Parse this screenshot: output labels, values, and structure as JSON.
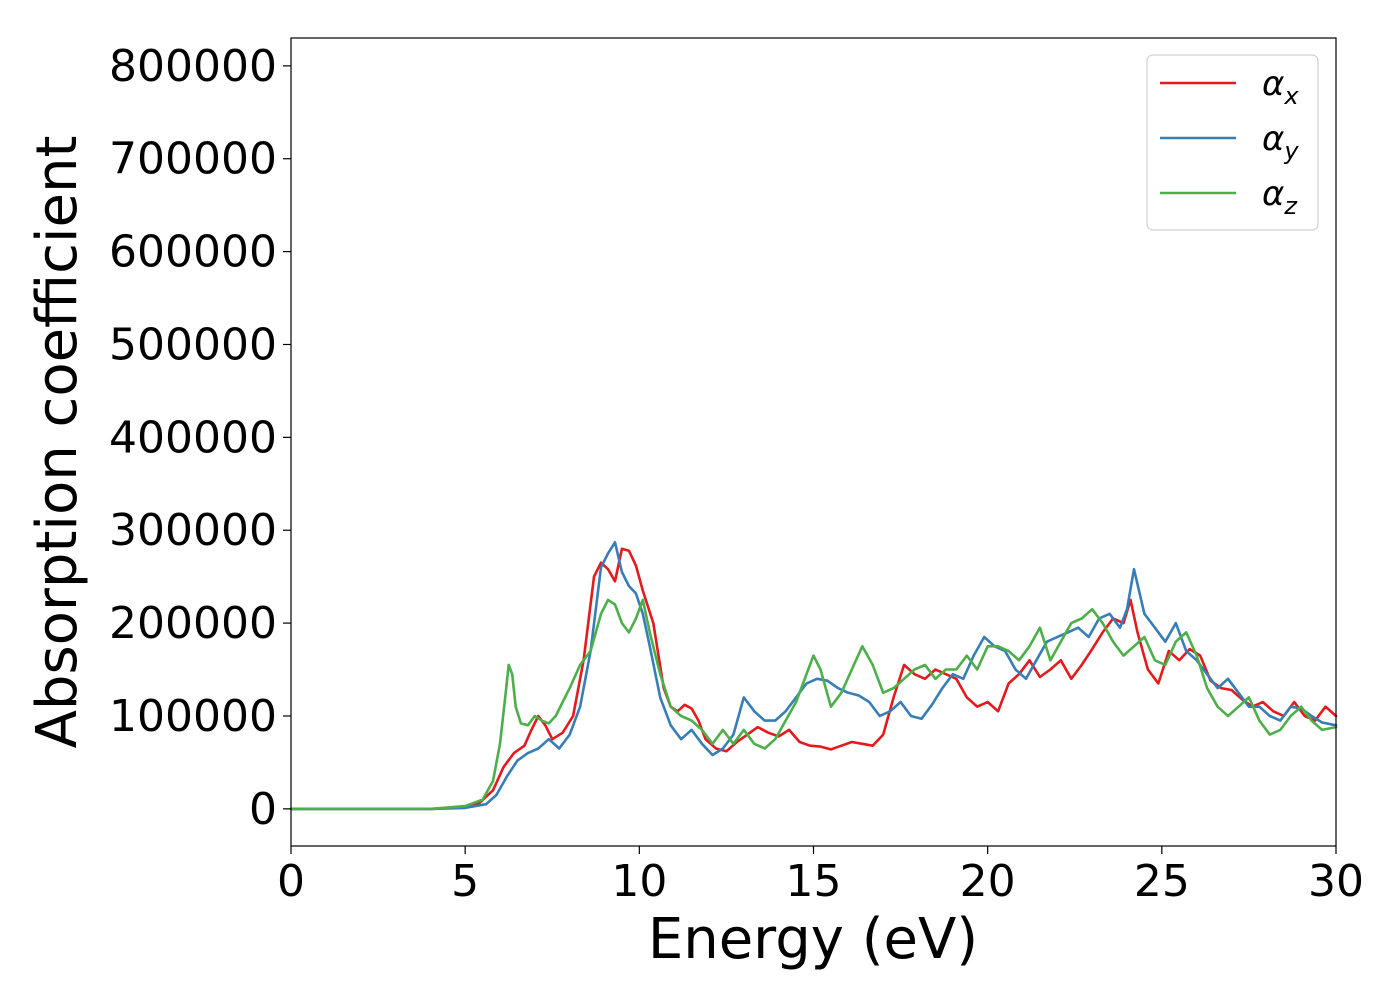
{
  "chart_data": {
    "type": "line",
    "xlabel": "Energy (eV)",
    "ylabel": "Absorption coefficient",
    "xlim": [
      0,
      30
    ],
    "ylim": [
      -40000,
      830000
    ],
    "xticks": [
      0,
      5,
      10,
      15,
      20,
      25,
      30
    ],
    "yticks": [
      0,
      100000,
      200000,
      300000,
      400000,
      500000,
      600000,
      700000,
      800000
    ],
    "grid": false,
    "legend_position": "top-right",
    "series": [
      {
        "name": "α_x",
        "label_base": "α",
        "label_sub": "x",
        "color": "#e41a1c",
        "x": [
          0,
          4,
          5,
          5.4,
          5.8,
          6.1,
          6.4,
          6.7,
          6.9,
          7.1,
          7.3,
          7.5,
          7.8,
          8.1,
          8.4,
          8.7,
          8.9,
          9.1,
          9.3,
          9.5,
          9.7,
          9.9,
          10.1,
          10.4,
          10.7,
          10.9,
          11.1,
          11.3,
          11.5,
          11.7,
          11.9,
          12.2,
          12.5,
          12.8,
          13.1,
          13.4,
          13.7,
          14.0,
          14.3,
          14.6,
          14.9,
          15.2,
          15.5,
          15.8,
          16.1,
          16.4,
          16.7,
          17.0,
          17.3,
          17.6,
          17.9,
          18.2,
          18.5,
          18.8,
          19.1,
          19.4,
          19.7,
          20.0,
          20.3,
          20.6,
          20.9,
          21.2,
          21.5,
          21.8,
          22.1,
          22.4,
          22.7,
          23.0,
          23.3,
          23.6,
          23.9,
          24.1,
          24.3,
          24.6,
          24.9,
          25.2,
          25.5,
          25.8,
          26.1,
          26.4,
          26.7,
          27.0,
          27.3,
          27.6,
          27.9,
          28.2,
          28.5,
          28.8,
          29.1,
          29.4,
          29.7,
          30.0
        ],
        "values": [
          0,
          0,
          2000,
          6000,
          20000,
          45000,
          60000,
          68000,
          85000,
          100000,
          90000,
          75000,
          82000,
          100000,
          160000,
          250000,
          265000,
          258000,
          245000,
          280000,
          278000,
          262000,
          235000,
          200000,
          130000,
          110000,
          105000,
          112000,
          108000,
          95000,
          75000,
          65000,
          62000,
          72000,
          80000,
          88000,
          82000,
          78000,
          85000,
          72000,
          68000,
          67000,
          64000,
          68000,
          72000,
          70000,
          68000,
          80000,
          120000,
          155000,
          145000,
          140000,
          150000,
          145000,
          140000,
          120000,
          110000,
          115000,
          105000,
          135000,
          145000,
          160000,
          142000,
          150000,
          160000,
          140000,
          155000,
          172000,
          190000,
          205000,
          200000,
          225000,
          190000,
          150000,
          135000,
          170000,
          160000,
          172000,
          165000,
          138000,
          130000,
          128000,
          118000,
          110000,
          115000,
          105000,
          100000,
          115000,
          100000,
          95000,
          110000,
          100000
        ]
      },
      {
        "name": "α_y",
        "label_base": "α",
        "label_sub": "y",
        "color": "#377eb8",
        "x": [
          0,
          4,
          5,
          5.6,
          5.9,
          6.2,
          6.5,
          6.8,
          7.1,
          7.4,
          7.7,
          8.0,
          8.3,
          8.6,
          8.9,
          9.1,
          9.3,
          9.5,
          9.7,
          9.9,
          10.1,
          10.3,
          10.6,
          10.9,
          11.2,
          11.5,
          11.8,
          12.1,
          12.4,
          12.7,
          13.0,
          13.3,
          13.6,
          13.9,
          14.2,
          14.5,
          14.8,
          15.1,
          15.4,
          15.7,
          16.0,
          16.3,
          16.6,
          16.9,
          17.2,
          17.5,
          17.8,
          18.1,
          18.4,
          18.7,
          19.0,
          19.3,
          19.6,
          19.9,
          20.2,
          20.5,
          20.8,
          21.1,
          21.4,
          21.7,
          22.0,
          22.3,
          22.6,
          22.9,
          23.2,
          23.5,
          23.8,
          24.0,
          24.2,
          24.5,
          24.8,
          25.1,
          25.4,
          25.7,
          26.0,
          26.3,
          26.6,
          26.9,
          27.2,
          27.5,
          27.8,
          28.1,
          28.4,
          28.7,
          29.0,
          29.3,
          29.6,
          30.0
        ],
        "values": [
          0,
          0,
          1000,
          5000,
          15000,
          35000,
          52000,
          60000,
          65000,
          75000,
          65000,
          80000,
          110000,
          170000,
          260000,
          275000,
          287000,
          255000,
          240000,
          232000,
          210000,
          175000,
          120000,
          90000,
          75000,
          85000,
          70000,
          58000,
          65000,
          80000,
          120000,
          105000,
          95000,
          95000,
          105000,
          120000,
          135000,
          140000,
          138000,
          130000,
          125000,
          122000,
          115000,
          100000,
          105000,
          115000,
          100000,
          97000,
          112000,
          130000,
          145000,
          140000,
          165000,
          185000,
          175000,
          170000,
          150000,
          140000,
          160000,
          180000,
          185000,
          190000,
          195000,
          185000,
          205000,
          210000,
          195000,
          215000,
          258000,
          210000,
          195000,
          180000,
          200000,
          170000,
          160000,
          145000,
          130000,
          140000,
          125000,
          110000,
          110000,
          100000,
          95000,
          110000,
          108000,
          100000,
          93000,
          90000
        ]
      },
      {
        "name": "α_z",
        "label_base": "α",
        "label_sub": "z",
        "color": "#4daf4a",
        "x": [
          0,
          4,
          5,
          5.5,
          5.8,
          6.0,
          6.15,
          6.25,
          6.35,
          6.45,
          6.6,
          6.8,
          7.0,
          7.2,
          7.4,
          7.6,
          7.8,
          8.0,
          8.3,
          8.6,
          8.9,
          9.1,
          9.3,
          9.5,
          9.7,
          9.9,
          10.1,
          10.3,
          10.6,
          10.9,
          11.2,
          11.5,
          11.8,
          12.1,
          12.4,
          12.7,
          13.0,
          13.3,
          13.6,
          13.9,
          14.2,
          14.5,
          14.8,
          15.0,
          15.2,
          15.5,
          15.8,
          16.1,
          16.4,
          16.7,
          17.0,
          17.3,
          17.6,
          17.9,
          18.2,
          18.5,
          18.8,
          19.1,
          19.4,
          19.7,
          20.0,
          20.3,
          20.6,
          20.9,
          21.2,
          21.5,
          21.8,
          22.1,
          22.4,
          22.7,
          23.0,
          23.3,
          23.6,
          23.9,
          24.2,
          24.5,
          24.8,
          25.1,
          25.4,
          25.7,
          26.0,
          26.3,
          26.6,
          26.9,
          27.2,
          27.5,
          27.8,
          28.1,
          28.4,
          28.7,
          29.0,
          29.3,
          29.6,
          30.0
        ],
        "values": [
          0,
          0,
          3000,
          10000,
          30000,
          70000,
          120000,
          155000,
          145000,
          110000,
          92000,
          90000,
          100000,
          95000,
          92000,
          100000,
          115000,
          130000,
          155000,
          170000,
          210000,
          225000,
          220000,
          200000,
          190000,
          205000,
          225000,
          190000,
          145000,
          110000,
          100000,
          95000,
          85000,
          70000,
          85000,
          70000,
          85000,
          70000,
          65000,
          75000,
          95000,
          115000,
          145000,
          165000,
          150000,
          110000,
          125000,
          150000,
          175000,
          155000,
          125000,
          130000,
          140000,
          150000,
          155000,
          140000,
          150000,
          150000,
          165000,
          150000,
          175000,
          175000,
          170000,
          160000,
          175000,
          195000,
          160000,
          180000,
          200000,
          205000,
          215000,
          200000,
          180000,
          165000,
          175000,
          185000,
          160000,
          155000,
          180000,
          190000,
          165000,
          130000,
          110000,
          100000,
          110000,
          120000,
          95000,
          80000,
          85000,
          100000,
          110000,
          95000,
          85000,
          88000
        ]
      }
    ]
  }
}
